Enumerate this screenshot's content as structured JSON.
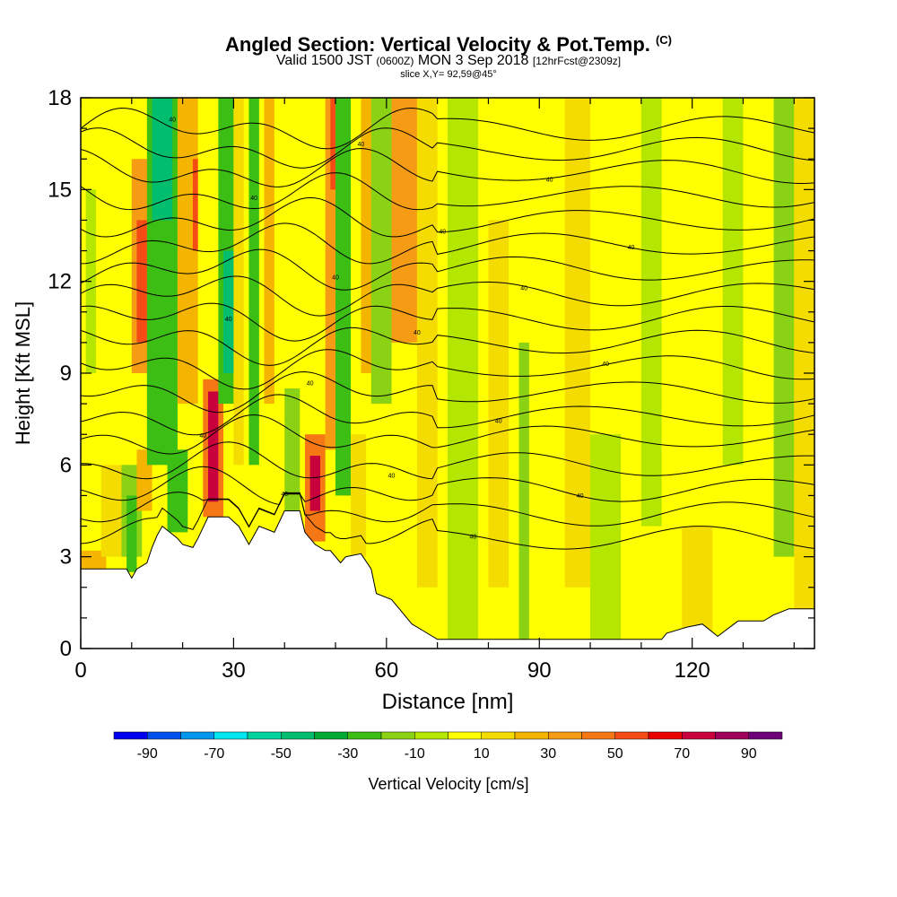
{
  "header": {
    "title": "Angled Section: Vertical Velocity & Pot.Temp.",
    "title_mark": "(C)",
    "valid_a": "Valid 1500 JST",
    "valid_utc": "(0600Z)",
    "valid_b": "MON 3 Sep 2018",
    "forecast": "[12hrFcst@2309z]",
    "slice": "slice X,Y= 92,59@45°"
  },
  "chart_data": {
    "type": "heatmap",
    "xlabel": "Distance [nm]",
    "ylabel": "Height [Kft MSL]",
    "xlim": [
      0,
      144
    ],
    "ylim": [
      0,
      18
    ],
    "x_ticks": [
      0,
      30,
      60,
      90,
      120
    ],
    "x_tick_labels": [
      "0",
      "30",
      "60",
      "90",
      "120"
    ],
    "y_ticks": [
      0,
      3,
      6,
      9,
      12,
      15,
      18
    ],
    "y_tick_labels": [
      "0",
      "3",
      "6",
      "9",
      "12",
      "15",
      "18"
    ],
    "grid": false,
    "colorbar": {
      "label": "Vertical Velocity [cm/s]",
      "min": -100,
      "max": 100,
      "step": 10,
      "tick_values": [
        -90,
        -70,
        -50,
        -30,
        -10,
        10,
        30,
        50,
        70,
        90
      ],
      "tick_labels": [
        "-90",
        "-70",
        "-50",
        "-30",
        "-10",
        "10",
        "30",
        "50",
        "70",
        "90"
      ],
      "colors": [
        "#0000ee",
        "#0050ee",
        "#0096ee",
        "#00e6f0",
        "#00d2a0",
        "#00be6e",
        "#00aa32",
        "#3cbe14",
        "#8cd214",
        "#b4e600",
        "#ffff00",
        "#f5dc00",
        "#f5b400",
        "#f59b14",
        "#f57814",
        "#f54b14",
        "#eb0000",
        "#c8003c",
        "#a0005a",
        "#6e0078"
      ]
    },
    "terrain_kft": [
      [
        0,
        2.6
      ],
      [
        9,
        2.6
      ],
      [
        10,
        2.3
      ],
      [
        11,
        2.6
      ],
      [
        13,
        2.8
      ],
      [
        14,
        3.3
      ],
      [
        15,
        3.7
      ],
      [
        16,
        4.0
      ],
      [
        19,
        3.6
      ],
      [
        20,
        3.4
      ],
      [
        22,
        3.3
      ],
      [
        23,
        3.6
      ],
      [
        25,
        4.3
      ],
      [
        29,
        4.3
      ],
      [
        31,
        4.0
      ],
      [
        33,
        3.4
      ],
      [
        35,
        4.0
      ],
      [
        38,
        3.8
      ],
      [
        40,
        4.5
      ],
      [
        43,
        4.5
      ],
      [
        44,
        3.8
      ],
      [
        46,
        3.4
      ],
      [
        48,
        3.2
      ],
      [
        49,
        3.2
      ],
      [
        51,
        2.8
      ],
      [
        52,
        3.0
      ],
      [
        55,
        3.1
      ],
      [
        57,
        2.6
      ],
      [
        58,
        1.8
      ],
      [
        61,
        1.6
      ],
      [
        62,
        1.4
      ],
      [
        64,
        1.0
      ],
      [
        65,
        0.8
      ],
      [
        67,
        0.6
      ],
      [
        70,
        0.3
      ],
      [
        96,
        0.3
      ],
      [
        104,
        0.3
      ],
      [
        114,
        0.3
      ],
      [
        115,
        0.5
      ],
      [
        119,
        0.7
      ],
      [
        122,
        0.8
      ],
      [
        125,
        0.4
      ],
      [
        129,
        0.9
      ],
      [
        134,
        0.9
      ],
      [
        136,
        1.1
      ],
      [
        139,
        1.3
      ],
      [
        144,
        1.3
      ]
    ],
    "cells_cm_s": [
      {
        "x": [
          0,
          144
        ],
        "y": [
          0,
          18
        ],
        "w": 8
      },
      {
        "x": [
          0,
          5
        ],
        "y": [
          1.5,
          3.2
        ],
        "w": 28
      },
      {
        "x": [
          4,
          9
        ],
        "y": [
          3.0,
          6.0
        ],
        "w": 15
      },
      {
        "x": [
          1,
          3
        ],
        "y": [
          9,
          15
        ],
        "w": -10
      },
      {
        "x": [
          8,
          12
        ],
        "y": [
          3,
          6
        ],
        "w": -12
      },
      {
        "x": [
          9,
          11
        ],
        "y": [
          2.5,
          5
        ],
        "w": -28
      },
      {
        "x": [
          11,
          14
        ],
        "y": [
          4.5,
          6.5
        ],
        "w": 22
      },
      {
        "x": [
          10,
          14
        ],
        "y": [
          9,
          16
        ],
        "w": 30
      },
      {
        "x": [
          11,
          13
        ],
        "y": [
          10,
          14
        ],
        "w": 55
      },
      {
        "x": [
          13,
          19
        ],
        "y": [
          6,
          18
        ],
        "w": -25
      },
      {
        "x": [
          14,
          18
        ],
        "y": [
          14,
          18
        ],
        "w": -45
      },
      {
        "x": [
          17,
          21
        ],
        "y": [
          3.8,
          6.5
        ],
        "w": -25
      },
      {
        "x": [
          19,
          23
        ],
        "y": [
          8,
          18
        ],
        "w": 28
      },
      {
        "x": [
          22,
          23
        ],
        "y": [
          13,
          16
        ],
        "w": 50
      },
      {
        "x": [
          24,
          28
        ],
        "y": [
          4.3,
          8.8
        ],
        "w": 40
      },
      {
        "x": [
          25,
          27
        ],
        "y": [
          4.8,
          8.4
        ],
        "w": 70
      },
      {
        "x": [
          27,
          30
        ],
        "y": [
          8,
          18
        ],
        "w": -30
      },
      {
        "x": [
          28,
          30
        ],
        "y": [
          9,
          13
        ],
        "w": -48
      },
      {
        "x": [
          30,
          32
        ],
        "y": [
          6,
          18
        ],
        "w": 15
      },
      {
        "x": [
          33,
          35
        ],
        "y": [
          6,
          18
        ],
        "w": -22
      },
      {
        "x": [
          36,
          38
        ],
        "y": [
          8,
          18
        ],
        "w": 20
      },
      {
        "x": [
          40,
          43
        ],
        "y": [
          4.5,
          8.5
        ],
        "w": -20
      },
      {
        "x": [
          44,
          48
        ],
        "y": [
          3.5,
          7.0
        ],
        "w": 40
      },
      {
        "x": [
          45,
          47
        ],
        "y": [
          4.5,
          6.3
        ],
        "w": 72
      },
      {
        "x": [
          48,
          50
        ],
        "y": [
          6.5,
          18
        ],
        "w": 35
      },
      {
        "x": [
          49,
          50
        ],
        "y": [
          15,
          18
        ],
        "w": 55
      },
      {
        "x": [
          50,
          53
        ],
        "y": [
          5,
          18
        ],
        "w": -25
      },
      {
        "x": [
          53,
          56
        ],
        "y": [
          3,
          7
        ],
        "w": 18
      },
      {
        "x": [
          55,
          58
        ],
        "y": [
          9,
          18
        ],
        "w": 28
      },
      {
        "x": [
          57,
          61
        ],
        "y": [
          8,
          18
        ],
        "w": -20
      },
      {
        "x": [
          61,
          66
        ],
        "y": [
          10,
          18
        ],
        "w": 30
      },
      {
        "x": [
          66,
          70
        ],
        "y": [
          2,
          18
        ],
        "w": 10
      },
      {
        "x": [
          72,
          78
        ],
        "y": [
          0.3,
          18
        ],
        "w": -10
      },
      {
        "x": [
          80,
          84
        ],
        "y": [
          2,
          14
        ],
        "w": 12
      },
      {
        "x": [
          86,
          88
        ],
        "y": [
          0.3,
          10
        ],
        "w": -12
      },
      {
        "x": [
          95,
          100
        ],
        "y": [
          2,
          18
        ],
        "w": 12
      },
      {
        "x": [
          100,
          106
        ],
        "y": [
          0.3,
          7
        ],
        "w": -10
      },
      {
        "x": [
          110,
          114
        ],
        "y": [
          4,
          18
        ],
        "w": -10
      },
      {
        "x": [
          118,
          124
        ],
        "y": [
          0.3,
          4
        ],
        "w": 12
      },
      {
        "x": [
          126,
          130
        ],
        "y": [
          6,
          18
        ],
        "w": -8
      },
      {
        "x": [
          136,
          140
        ],
        "y": [
          3,
          18
        ],
        "w": -12
      },
      {
        "x": [
          140,
          144
        ],
        "y": [
          0.3,
          18
        ],
        "w": 12
      }
    ],
    "isentropes_kft": [
      {
        "label": "40",
        "level": 17.0
      },
      {
        "label": "40",
        "level": 16.3
      },
      {
        "label": "40",
        "level": 15.6
      },
      {
        "label": "40",
        "level": 14.8
      },
      {
        "label": "40",
        "level": 14.0
      },
      {
        "label": "40",
        "level": 13.2
      },
      {
        "label": "40",
        "level": 12.4
      },
      {
        "label": "40",
        "level": 11.6
      },
      {
        "label": "40",
        "level": 10.8
      },
      {
        "label": "40",
        "level": 10.0
      },
      {
        "label": "40",
        "level": 9.2
      },
      {
        "label": "40",
        "level": 8.4
      },
      {
        "label": "40",
        "level": 7.6
      },
      {
        "label": "40",
        "level": 6.9
      },
      {
        "label": "40",
        "level": 6.0
      },
      {
        "label": "40",
        "level": 5.2
      },
      {
        "label": "40",
        "level": 4.4
      },
      {
        "label": "40",
        "level": 3.6
      }
    ]
  }
}
